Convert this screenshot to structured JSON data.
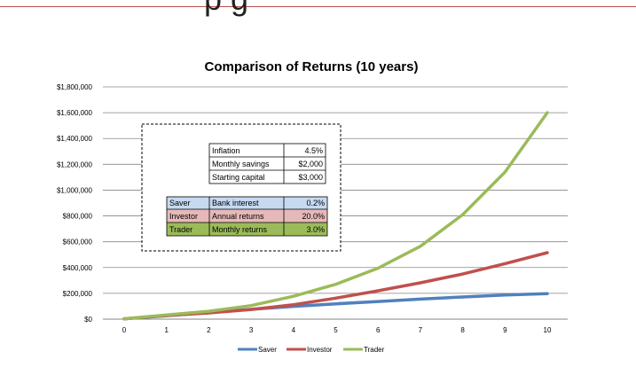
{
  "heading_fragment": "p   g",
  "chart_data": {
    "type": "line",
    "title": "Comparison of Returns (10 years)",
    "xlabel": "",
    "ylabel": "",
    "x": [
      0,
      1,
      2,
      3,
      4,
      5,
      6,
      7,
      8,
      9,
      10
    ],
    "ylim": [
      0,
      1800000
    ],
    "y_ticks": [
      0,
      200000,
      400000,
      600000,
      800000,
      1000000,
      1200000,
      1400000,
      1600000,
      1800000
    ],
    "y_tick_labels": [
      "$0",
      "$200,000",
      "$400,000",
      "$600,000",
      "$800,000",
      "$1,000,000",
      "$1,200,000",
      "$1,400,000",
      "$1,600,000",
      "$1,800,000"
    ],
    "x_tick_labels": [
      "0",
      "1",
      "2",
      "3",
      "4",
      "5",
      "6",
      "7",
      "8",
      "9",
      "10"
    ],
    "grid": true,
    "legend_position": "bottom",
    "series": [
      {
        "name": "Saver",
        "color": "#4f81bd",
        "values": [
          3000,
          27000,
          51500,
          76500,
          99000,
          119000,
          137000,
          155000,
          172000,
          187000,
          198000
        ]
      },
      {
        "name": "Investor",
        "color": "#c0504d",
        "values": [
          3000,
          28500,
          48000,
          75000,
          112000,
          163000,
          220000,
          282000,
          350000,
          430000,
          515000
        ]
      },
      {
        "name": "Trader",
        "color": "#9bbb59",
        "values": [
          3000,
          33000,
          61000,
          105000,
          177000,
          270000,
          395000,
          565000,
          810000,
          1140000,
          1600000
        ]
      }
    ],
    "parameters_table": {
      "rows": [
        {
          "label": "Inflation",
          "value": "4.5%"
        },
        {
          "label": "Monthly savings",
          "value": "$2,000"
        },
        {
          "label": "Starting capital",
          "value": "$3,000"
        }
      ]
    },
    "strategy_table": {
      "rows": [
        {
          "name": "Saver",
          "label": "Bank interest",
          "value": "0.2%",
          "color": "#c5d9f1"
        },
        {
          "name": "Investor",
          "label": "Annual returns",
          "value": "20.0%",
          "color": "#e6b9b8"
        },
        {
          "name": "Trader",
          "label": "Monthly returns",
          "value": "3.0%",
          "color": "#9bbb59"
        }
      ]
    }
  }
}
